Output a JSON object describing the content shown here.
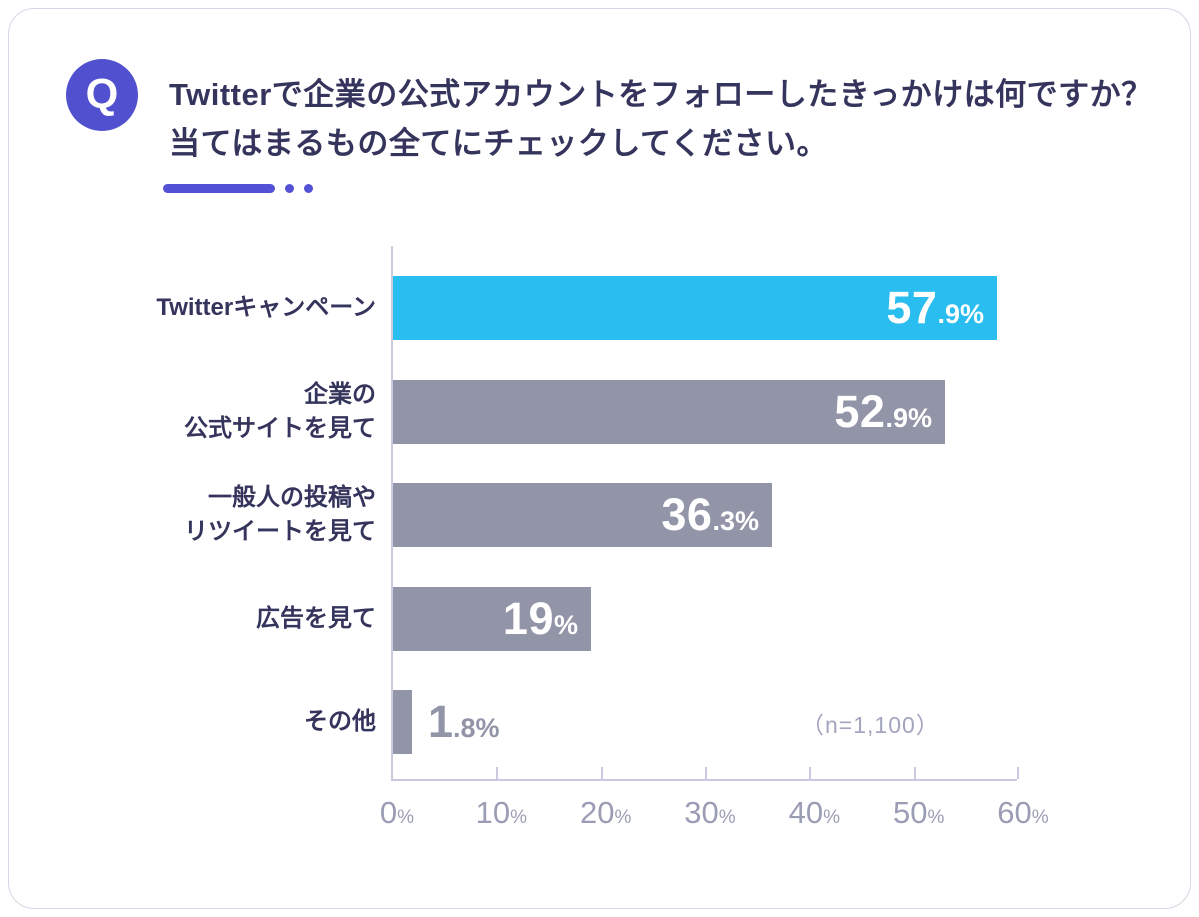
{
  "question": {
    "badge": "Q",
    "text_line1": "Twitterで企業の公式アカウントをフォローしたきっかけは何ですか？",
    "text_line2": "当てはまるもの全てにチェックしてください。"
  },
  "chart_data": {
    "type": "bar",
    "orientation": "horizontal",
    "title": "Twitterで企業の公式アカウントをフォローしたきっかけは何ですか？当てはまるもの全てにチェックしてください。",
    "categories": [
      "Twitterキャンペーン",
      "企業の\n公式サイトを見て",
      "一般人の投稿や\nリツイートを見て",
      "広告を見て",
      "その他"
    ],
    "values": [
      57.9,
      52.9,
      36.3,
      19,
      1.8
    ],
    "value_display": [
      "57.9%",
      "52.9%",
      "36.3%",
      "19%",
      "1.8%"
    ],
    "bar_colors": [
      "#29bdf0",
      "#9295a8",
      "#9295a8",
      "#9295a8",
      "#9295a8"
    ],
    "value_inside": [
      true,
      true,
      true,
      true,
      false
    ],
    "xlim": [
      0,
      60
    ],
    "x_ticks": [
      0,
      10,
      20,
      30,
      40,
      50,
      60
    ],
    "x_tick_suffix": "%",
    "annotation": "（n=1,100）",
    "grid": false,
    "legend": false
  },
  "colors": {
    "accent": "#5150ce",
    "heading_text": "#34345c",
    "highlight_bar": "#29bdf0",
    "default_bar": "#9295a8",
    "axis_line": "#c9cadf",
    "tick_text": "#9b9db5",
    "annotation_text": "#a3a5be",
    "value_text_inside": "#ffffff",
    "value_text_outside": "#9295a8",
    "card_border": "#d5d7e4",
    "card_background": "#ffffff"
  }
}
